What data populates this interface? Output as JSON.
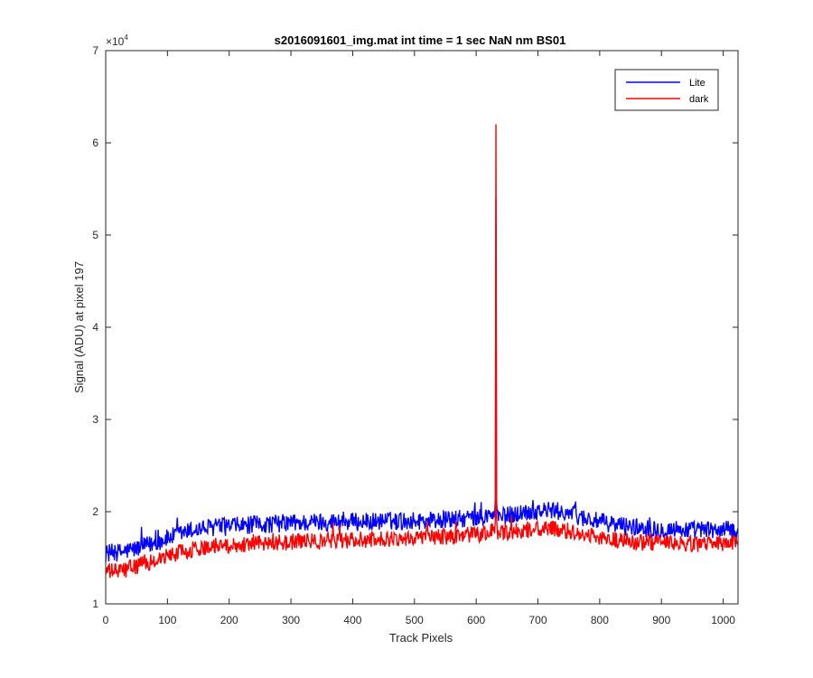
{
  "chart_data": {
    "type": "line",
    "title": "s2016091601_img.mat int time = 1 sec  NaN nm BS01",
    "xlabel": "Track Pixels",
    "ylabel": "Signal (ADU) at pixel 197",
    "y_exponent_label": "×10",
    "y_exponent_power": "4",
    "xlim": [
      0,
      1024
    ],
    "ylim": [
      10000,
      70000
    ],
    "x_ticks": [
      0,
      100,
      200,
      300,
      400,
      500,
      600,
      700,
      800,
      900,
      1000
    ],
    "x_tick_labels": [
      "0",
      "100",
      "200",
      "300",
      "400",
      "500",
      "600",
      "700",
      "800",
      "900",
      "1000"
    ],
    "y_ticks": [
      10000,
      20000,
      30000,
      40000,
      50000,
      60000,
      70000
    ],
    "y_tick_labels": [
      "1",
      "2",
      "3",
      "4",
      "5",
      "6",
      "7"
    ],
    "grid": false,
    "legend_position": "top-right",
    "series": [
      {
        "name": "Lite",
        "color": "#0000ff",
        "x": [
          0,
          25,
          50,
          75,
          100,
          125,
          150,
          175,
          200,
          225,
          250,
          275,
          300,
          325,
          350,
          375,
          400,
          425,
          450,
          475,
          500,
          525,
          550,
          575,
          600,
          620,
          630,
          640,
          650,
          675,
          700,
          725,
          750,
          775,
          800,
          825,
          850,
          875,
          900,
          925,
          950,
          975,
          1000,
          1024
        ],
        "values": [
          15500,
          15600,
          16000,
          16500,
          17100,
          17700,
          18100,
          18300,
          18400,
          18500,
          18600,
          18700,
          18800,
          18800,
          18900,
          18900,
          18900,
          18900,
          19000,
          19000,
          19000,
          19100,
          19100,
          19200,
          19300,
          19500,
          19800,
          19400,
          19600,
          19900,
          20100,
          20100,
          19900,
          19300,
          18900,
          18600,
          18400,
          18200,
          18100,
          18100,
          18000,
          18000,
          18000,
          18000
        ],
        "noise": 1000
      },
      {
        "name": "dark",
        "color": "#ff0000",
        "x": [
          0,
          25,
          50,
          75,
          100,
          125,
          150,
          175,
          200,
          225,
          250,
          275,
          300,
          325,
          350,
          375,
          400,
          425,
          450,
          475,
          500,
          525,
          550,
          575,
          600,
          620,
          630,
          640,
          650,
          675,
          700,
          725,
          750,
          775,
          800,
          825,
          850,
          875,
          900,
          925,
          950,
          975,
          1000,
          1024
        ],
        "values": [
          13500,
          13600,
          14100,
          14600,
          15200,
          15700,
          16000,
          16300,
          16400,
          16500,
          16600,
          16700,
          16700,
          16800,
          16800,
          16900,
          16900,
          17000,
          17000,
          17100,
          17200,
          17200,
          17300,
          17400,
          17500,
          17700,
          18000,
          17600,
          17700,
          18000,
          18100,
          18100,
          17900,
          17500,
          17200,
          16900,
          16800,
          16700,
          16600,
          16500,
          16500,
          16500,
          16500,
          16500
        ],
        "noise": 900
      }
    ],
    "spikes": [
      {
        "series": "dark",
        "x": 632,
        "peak": 62000
      },
      {
        "series": "Lite",
        "x": 632,
        "peak": 54000
      }
    ]
  }
}
